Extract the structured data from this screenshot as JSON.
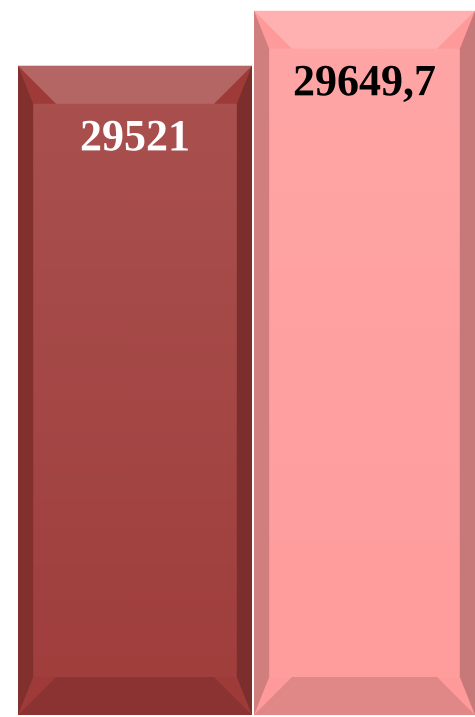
{
  "chart_data": {
    "type": "bar",
    "categories": [
      null,
      null
    ],
    "values": [
      29521,
      29649.7
    ],
    "value_labels": [
      "29521",
      "29649,7"
    ],
    "colors": [
      "#9e3b39",
      "#ff9a9a"
    ],
    "label_colors": [
      "#ffffff",
      "#000000"
    ],
    "ylim": [
      28000,
      29675
    ]
  }
}
